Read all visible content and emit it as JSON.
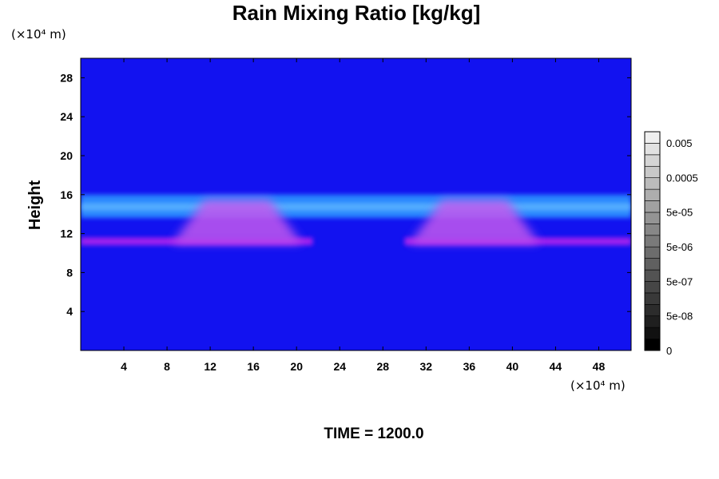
{
  "chart_data": {
    "type": "heatmap",
    "title": "Rain Mixing Ratio [kg/kg]",
    "ylabel": "Height",
    "x_unit_label": "(×10⁴ m)",
    "y_unit_label": "(×10⁴ m)",
    "xlim": [
      0,
      51
    ],
    "ylim": [
      0,
      30
    ],
    "x_ticks": [
      4,
      8,
      12,
      16,
      20,
      24,
      28,
      32,
      36,
      40,
      44,
      48
    ],
    "y_ticks": [
      4,
      8,
      12,
      16,
      20,
      24,
      28
    ],
    "colorbar": {
      "tick_labels": [
        "0.005",
        "0.0005",
        "5e-05",
        "5e-06",
        "5e-07",
        "5e-08",
        "0"
      ],
      "colors": [
        "#000000",
        "#111111",
        "#1f1f1f",
        "#2c2c2c",
        "#393939",
        "#464646",
        "#535353",
        "#606060",
        "#6d6d6d",
        "#7a7a7a",
        "#878787",
        "#949494",
        "#a1a1a1",
        "#aeaeae",
        "#bbbbbb",
        "#c8c8c8",
        "#d5d5d5",
        "#e2e2e2",
        "#efefef"
      ]
    },
    "background_color": "#1212f0",
    "features": [
      {
        "kind": "band",
        "color": "#2a8cff",
        "y_range": [
          13.6,
          16.0
        ],
        "x_range": [
          0,
          51
        ],
        "note_color_light": "#6fc6ff"
      },
      {
        "kind": "band",
        "color": "#a820ee",
        "y_range": [
          10.8,
          11.6
        ],
        "x_range": [
          0,
          21.5
        ]
      },
      {
        "kind": "band",
        "color": "#a820ee",
        "y_range": [
          10.8,
          11.6
        ],
        "x_range": [
          30.0,
          51
        ]
      },
      {
        "kind": "plume",
        "color": "#c258ee",
        "center_x": 14.5,
        "half_width_bottom": 6.0,
        "half_width_top": 3.0,
        "y_range": [
          11.0,
          15.5
        ]
      },
      {
        "kind": "plume",
        "color": "#c258ee",
        "center_x": 36.5,
        "half_width_bottom": 6.0,
        "half_width_top": 3.0,
        "y_range": [
          11.0,
          15.5
        ]
      }
    ]
  },
  "footer": "TIME = 1200.0"
}
